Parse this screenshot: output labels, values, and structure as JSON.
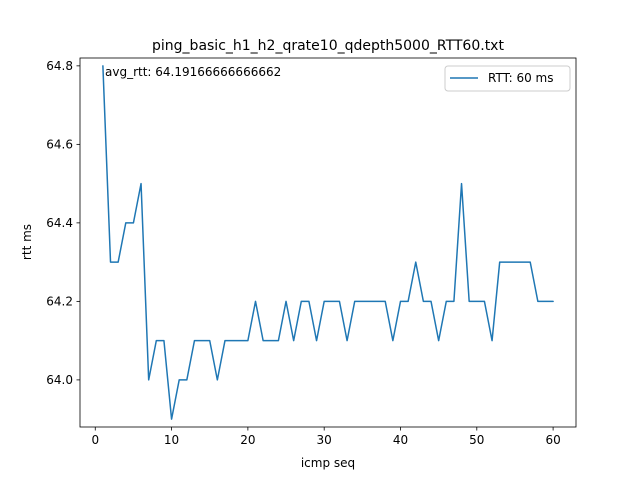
{
  "chart_data": {
    "type": "line",
    "title": "ping_basic_h1_h2_qrate10_qdepth5000_RTT60.txt",
    "xlabel": "icmp seq",
    "ylabel": "rtt ms",
    "xlim": [
      -2.0,
      63.0
    ],
    "ylim": [
      63.88,
      64.82
    ],
    "xticks": [
      0,
      10,
      20,
      30,
      40,
      50,
      60
    ],
    "yticks": [
      64.0,
      64.2,
      64.4,
      64.6,
      64.8
    ],
    "xtick_labels": [
      "0",
      "10",
      "20",
      "30",
      "40",
      "50",
      "60"
    ],
    "ytick_labels": [
      "64.0",
      "64.2",
      "64.4",
      "64.6",
      "64.8"
    ],
    "grid": false,
    "legend_position": "top-right",
    "annotation": "avg_rtt: 64.19166666666662",
    "series": [
      {
        "name": "RTT: 60 ms",
        "color": "#1f77b4",
        "x": [
          1,
          2,
          3,
          4,
          5,
          6,
          7,
          8,
          9,
          10,
          11,
          12,
          13,
          14,
          15,
          16,
          17,
          18,
          19,
          20,
          21,
          22,
          23,
          24,
          25,
          26,
          27,
          28,
          29,
          30,
          31,
          32,
          33,
          34,
          35,
          36,
          37,
          38,
          39,
          40,
          41,
          42,
          43,
          44,
          45,
          46,
          47,
          48,
          49,
          50,
          51,
          52,
          53,
          54,
          55,
          56,
          57,
          58,
          59,
          60
        ],
        "values": [
          64.8,
          64.3,
          64.3,
          64.4,
          64.4,
          64.5,
          64.0,
          64.1,
          64.1,
          63.9,
          64.0,
          64.0,
          64.1,
          64.1,
          64.1,
          64.0,
          64.1,
          64.1,
          64.1,
          64.1,
          64.2,
          64.1,
          64.1,
          64.1,
          64.2,
          64.1,
          64.2,
          64.2,
          64.1,
          64.2,
          64.2,
          64.2,
          64.1,
          64.2,
          64.2,
          64.2,
          64.2,
          64.2,
          64.1,
          64.2,
          64.2,
          64.3,
          64.2,
          64.2,
          64.1,
          64.2,
          64.2,
          64.5,
          64.2,
          64.2,
          64.2,
          64.1,
          64.3,
          64.3,
          64.3,
          64.3,
          64.3,
          64.2,
          64.2,
          64.2
        ]
      }
    ]
  }
}
